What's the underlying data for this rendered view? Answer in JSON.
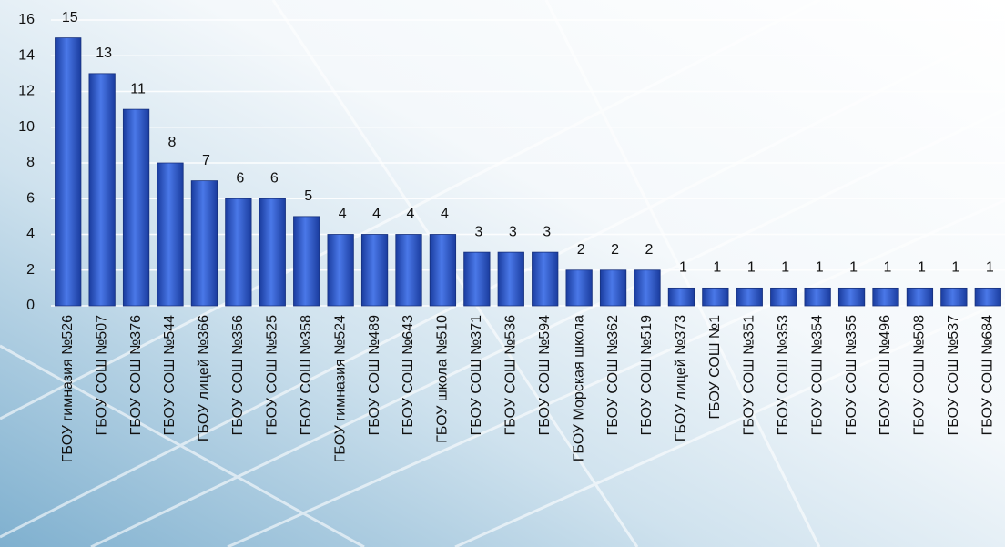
{
  "chart_data": {
    "type": "bar",
    "categories": [
      "ГБОУ гимназия №526",
      "ГБОУ СОШ №507",
      "ГБОУ СОШ №376",
      "ГБОУ СОШ №544",
      "ГБОУ лицей №366",
      "ГБОУ СОШ №356",
      "ГБОУ СОШ №525",
      "ГБОУ СОШ №358",
      "ГБОУ гимназия №524",
      "ГБОУ СОШ №489",
      "ГБОУ СОШ №643",
      "ГБОУ школа №510",
      "ГБОУ СОШ №371",
      "ГБОУ СОШ №536",
      "ГБОУ СОШ №594",
      "ГБОУ Морская школа",
      "ГБОУ СОШ №362",
      "ГБОУ СОШ №519",
      "ГБОУ лицей №373",
      "ГБОУ СОШ №1",
      "ГБОУ СОШ №351",
      "ГБОУ СОШ №353",
      "ГБОУ СОШ №354",
      "ГБОУ СОШ №355",
      "ГБОУ СОШ №496",
      "ГБОУ СОШ №508",
      "ГБОУ СОШ №537",
      "ГБОУ СОШ №684"
    ],
    "values": [
      15,
      13,
      11,
      8,
      7,
      6,
      6,
      5,
      4,
      4,
      4,
      4,
      3,
      3,
      3,
      2,
      2,
      2,
      1,
      1,
      1,
      1,
      1,
      1,
      1,
      1,
      1,
      1
    ],
    "color": "#2a52c8",
    "ylim": [
      0,
      16
    ],
    "yticks": [
      0,
      2,
      4,
      6,
      8,
      10,
      12,
      14,
      16
    ],
    "grid": true
  }
}
